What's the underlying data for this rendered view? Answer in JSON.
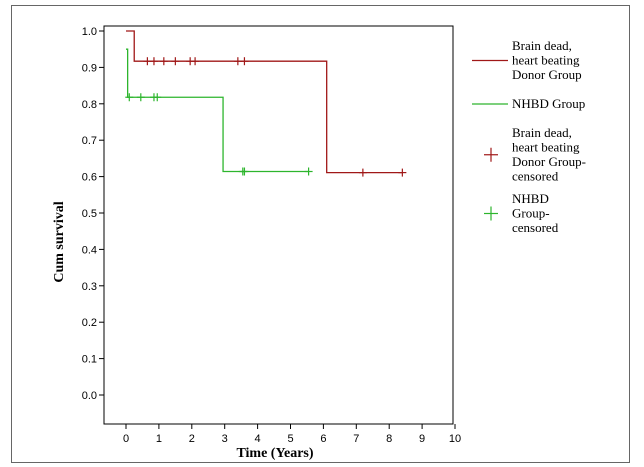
{
  "chart_data": {
    "type": "line",
    "subtype": "kaplan-meier",
    "title": "",
    "xlabel": "Time (Years)",
    "ylabel": "Cum survival",
    "xlim": [
      0,
      10
    ],
    "ylim": [
      0.0,
      1.0
    ],
    "x_ticks": [
      0,
      1,
      2,
      3,
      4,
      5,
      6,
      7,
      8,
      9,
      10
    ],
    "y_ticks": [
      0.0,
      0.1,
      0.2,
      0.3,
      0.4,
      0.5,
      0.6,
      0.7,
      0.8,
      0.9,
      1.0
    ],
    "y_tick_labels": [
      "0.0",
      "0.1",
      "0.2",
      "0.3",
      "0.4",
      "0.5",
      "0.6",
      "0.7",
      "0.8",
      "0.9",
      "1.0"
    ],
    "grid": false,
    "legend_position": "right",
    "series": [
      {
        "name": "Brain dead, heart beating Donor Group",
        "color": "#a01818",
        "steps": [
          [
            0.0,
            1.0
          ],
          [
            0.25,
            0.917
          ],
          [
            6.1,
            0.611
          ],
          [
            8.4,
            0.611
          ]
        ],
        "censored_name": "Brain dead, heart beating Donor Group-censored",
        "censored": [
          [
            0.65,
            0.917
          ],
          [
            0.85,
            0.917
          ],
          [
            1.15,
            0.917
          ],
          [
            1.5,
            0.917
          ],
          [
            1.95,
            0.917
          ],
          [
            2.1,
            0.917
          ],
          [
            3.4,
            0.917
          ],
          [
            3.6,
            0.917
          ],
          [
            7.2,
            0.611
          ],
          [
            8.4,
            0.611
          ]
        ]
      },
      {
        "name": "NHBD Group",
        "color": "#2db52d",
        "steps": [
          [
            0.0,
            0.95
          ],
          [
            0.05,
            0.818
          ],
          [
            2.95,
            0.614
          ],
          [
            5.55,
            0.614
          ]
        ],
        "censored_name": "NHBD Group-censored",
        "censored": [
          [
            0.1,
            0.818
          ],
          [
            0.45,
            0.818
          ],
          [
            0.85,
            0.818
          ],
          [
            0.95,
            0.818
          ],
          [
            3.55,
            0.614
          ],
          [
            3.6,
            0.614
          ],
          [
            5.55,
            0.614
          ]
        ]
      }
    ],
    "legend": [
      {
        "label_lines": [
          "Brain dead,",
          "heart beating",
          "Donor Group"
        ],
        "symbol": "line",
        "series": 0
      },
      {
        "label_lines": [
          "NHBD Group"
        ],
        "symbol": "line",
        "series": 1
      },
      {
        "label_lines": [
          "Brain dead,",
          "heart beating",
          "Donor Group-",
          "censored"
        ],
        "symbol": "plus",
        "series": 0
      },
      {
        "label_lines": [
          "NHBD",
          "Group-",
          "censored"
        ],
        "symbol": "plus",
        "series": 1
      }
    ]
  }
}
